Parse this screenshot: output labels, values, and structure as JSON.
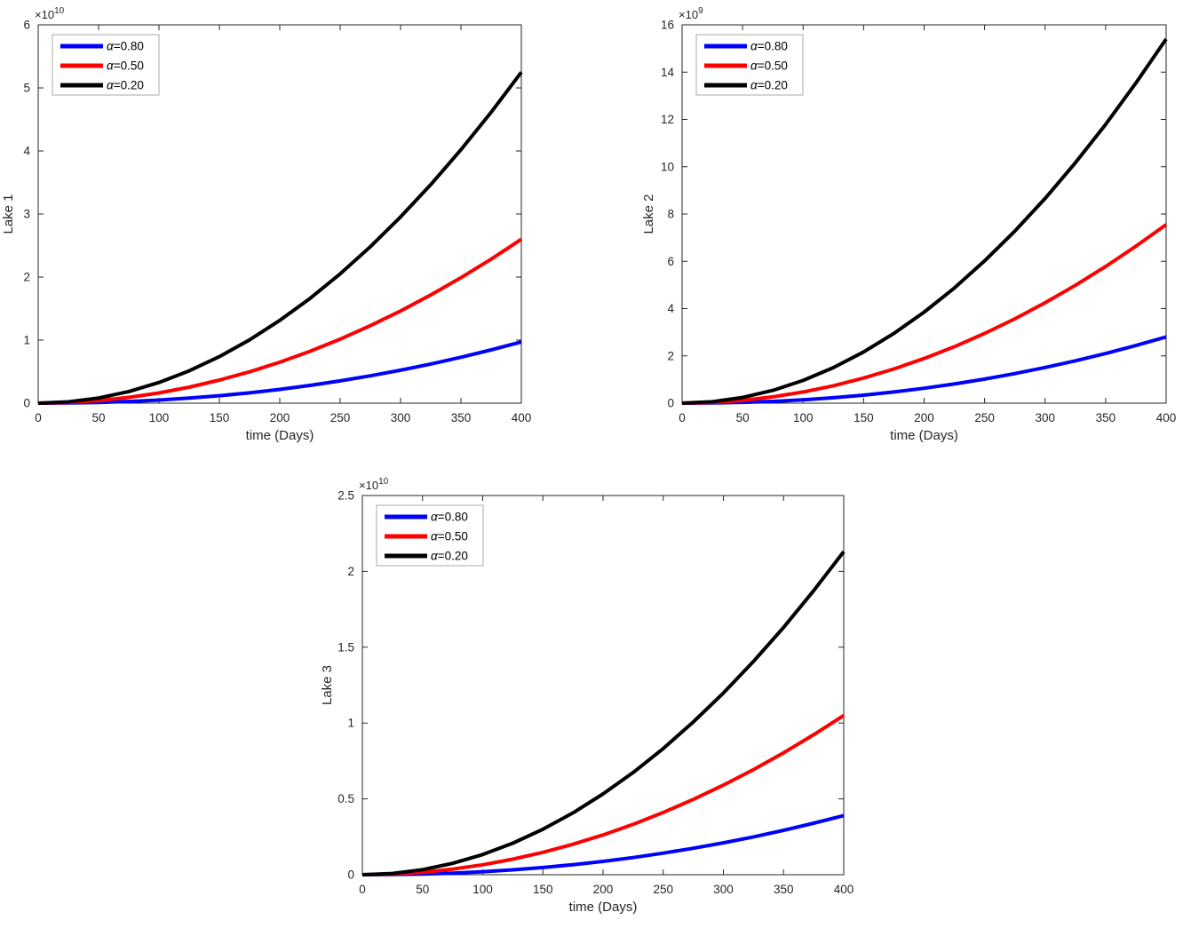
{
  "figure": {
    "background": "#ffffff",
    "axis_color": "#262626",
    "legend_border_color": "#a9a9a9",
    "legend_background": "#ffffff"
  },
  "chart_data": [
    {
      "id": "lake-1",
      "type": "line",
      "title": "",
      "xlabel": "time (Days)",
      "ylabel": "Lake 1",
      "y_scale_label": "×10^10",
      "xlim": [
        0,
        400
      ],
      "ylim": [
        0,
        6
      ],
      "x_ticks": [
        0,
        50,
        100,
        150,
        200,
        250,
        300,
        350,
        400
      ],
      "y_ticks": [
        0,
        1,
        2,
        3,
        4,
        5,
        6
      ],
      "grid": false,
      "legend_position": "top-left",
      "x": [
        0,
        25,
        50,
        75,
        100,
        125,
        150,
        175,
        200,
        225,
        250,
        275,
        300,
        325,
        350,
        375,
        400
      ],
      "series": [
        {
          "id": "alpha-080",
          "name": "α=0.80",
          "color": "#0000ff",
          "values": [
            0,
            0.0025,
            0.0111,
            0.0265,
            0.0492,
            0.0796,
            0.1177,
            0.164,
            0.2185,
            0.2815,
            0.3531,
            0.4334,
            0.5226,
            0.6207,
            0.728,
            0.8444,
            0.97
          ]
        },
        {
          "id": "alpha-050",
          "name": "α=0.50",
          "color": "#ff0000",
          "values": [
            0,
            0.0102,
            0.0406,
            0.0914,
            0.1625,
            0.2539,
            0.3656,
            0.4977,
            0.65,
            0.8227,
            1.0156,
            1.2289,
            1.4625,
            1.7164,
            1.9906,
            2.2852,
            2.6
          ]
        },
        {
          "id": "alpha-020",
          "name": "α=0.20",
          "color": "#000000",
          "values": [
            0,
            0.0205,
            0.082,
            0.1846,
            0.3281,
            0.5127,
            0.7383,
            1.0049,
            1.3125,
            1.6611,
            2.0508,
            2.4814,
            2.9531,
            3.4658,
            4.0195,
            4.6143,
            5.25
          ]
        }
      ]
    },
    {
      "id": "lake-2",
      "type": "line",
      "title": "",
      "xlabel": "time (Days)",
      "ylabel": "Lake 2",
      "y_scale_label": "×10^9",
      "xlim": [
        0,
        400
      ],
      "ylim": [
        0,
        16
      ],
      "x_ticks": [
        0,
        50,
        100,
        150,
        200,
        250,
        300,
        350,
        400
      ],
      "y_ticks": [
        0,
        2,
        4,
        6,
        8,
        10,
        12,
        14,
        16
      ],
      "grid": false,
      "legend_position": "top-left",
      "x": [
        0,
        25,
        50,
        75,
        100,
        125,
        150,
        175,
        200,
        225,
        250,
        275,
        300,
        325,
        350,
        375,
        400
      ],
      "series": [
        {
          "id": "alpha-080",
          "name": "α=0.80",
          "color": "#0000ff",
          "values": [
            0,
            0.0072,
            0.032,
            0.0766,
            0.1421,
            0.2297,
            0.3399,
            0.4734,
            0.6308,
            0.8127,
            1.0193,
            1.251,
            1.5085,
            1.7917,
            2.1013,
            2.4373,
            2.8
          ]
        },
        {
          "id": "alpha-050",
          "name": "α=0.50",
          "color": "#ff0000",
          "values": [
            0,
            0.0295,
            0.118,
            0.2654,
            0.4719,
            0.7373,
            1.0617,
            1.4451,
            1.8875,
            2.3889,
            2.9492,
            3.5686,
            4.2469,
            4.9842,
            5.7805,
            6.6357,
            7.55
          ]
        },
        {
          "id": "alpha-020",
          "name": "α=0.20",
          "color": "#000000",
          "values": [
            0,
            0.0602,
            0.2406,
            0.5414,
            0.9625,
            1.5039,
            2.1656,
            2.9477,
            3.85,
            4.8727,
            6.0156,
            7.2789,
            8.6625,
            10.1664,
            11.7906,
            13.5352,
            15.4
          ]
        }
      ]
    },
    {
      "id": "lake-3",
      "type": "line",
      "title": "",
      "xlabel": "time (Days)",
      "ylabel": "Lake 3",
      "y_scale_label": "×10^10",
      "xlim": [
        0,
        400
      ],
      "ylim": [
        0,
        2.5
      ],
      "x_ticks": [
        0,
        50,
        100,
        150,
        200,
        250,
        300,
        350,
        400
      ],
      "y_ticks": [
        0,
        0.5,
        1,
        1.5,
        2,
        2.5
      ],
      "grid": false,
      "legend_position": "top-left",
      "x": [
        0,
        25,
        50,
        75,
        100,
        125,
        150,
        175,
        200,
        225,
        250,
        275,
        300,
        325,
        350,
        375,
        400
      ],
      "series": [
        {
          "id": "alpha-080",
          "name": "α=0.80",
          "color": "#0000ff",
          "values": [
            0,
            0.001,
            0.0045,
            0.0107,
            0.0198,
            0.032,
            0.0473,
            0.0659,
            0.0879,
            0.1132,
            0.142,
            0.1743,
            0.2101,
            0.2496,
            0.2927,
            0.3395,
            0.39
          ]
        },
        {
          "id": "alpha-050",
          "name": "α=0.50",
          "color": "#ff0000",
          "values": [
            0,
            0.0041,
            0.0164,
            0.0369,
            0.0656,
            0.1025,
            0.1477,
            0.201,
            0.2625,
            0.3322,
            0.4102,
            0.4963,
            0.5906,
            0.6932,
            0.8039,
            0.9228,
            1.05
          ]
        },
        {
          "id": "alpha-020",
          "name": "α=0.20",
          "color": "#000000",
          "values": [
            0,
            0.0083,
            0.0333,
            0.0749,
            0.1331,
            0.208,
            0.2995,
            0.4077,
            0.5325,
            0.6739,
            0.832,
            1.0068,
            1.1981,
            1.4061,
            1.6308,
            1.8721,
            2.13
          ]
        }
      ]
    }
  ]
}
